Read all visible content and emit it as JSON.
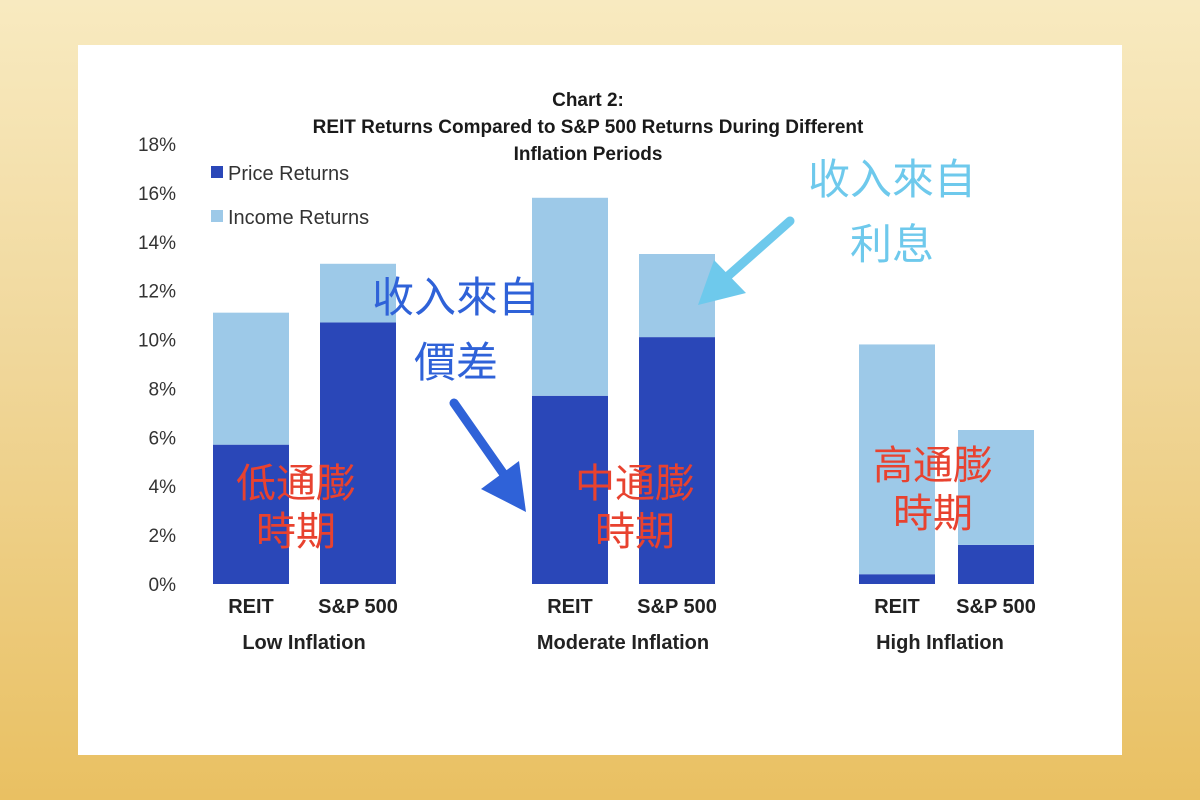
{
  "chart_data": {
    "type": "bar",
    "stacked": true,
    "title_lines": [
      "Chart 2:",
      "REIT Returns Compared to S&P 500 Returns During Different",
      "Inflation Periods"
    ],
    "ylim": [
      0,
      18
    ],
    "y_ticks": [
      "0%",
      "2%",
      "4%",
      "6%",
      "8%",
      "10%",
      "12%",
      "14%",
      "16%",
      "18%"
    ],
    "grid": false,
    "legend_position": "top-left",
    "groups": [
      {
        "name": "Low Inflation",
        "bars": [
          {
            "label": "REIT",
            "price": 5.7,
            "income": 5.4
          },
          {
            "label": "S&P 500",
            "price": 10.7,
            "income": 2.4
          }
        ]
      },
      {
        "name": "Moderate Inflation",
        "bars": [
          {
            "label": "REIT",
            "price": 7.7,
            "income": 8.1
          },
          {
            "label": "S&P 500",
            "price": 10.1,
            "income": 3.4
          }
        ]
      },
      {
        "name": "High Inflation",
        "bars": [
          {
            "label": "REIT",
            "price": 0.4,
            "income": 9.4
          },
          {
            "label": "S&P 500",
            "price": 1.6,
            "income": 4.7
          }
        ]
      }
    ],
    "series": [
      {
        "name": "Price Returns",
        "color": "#2a47b8"
      },
      {
        "name": "Income Returns",
        "color": "#9dc9e8"
      }
    ]
  },
  "annotations": {
    "low_period": [
      "低通膨",
      "時期"
    ],
    "moderate_period": [
      "中通膨",
      "時期"
    ],
    "high_period": [
      "高通膨",
      "時期"
    ],
    "price_diff": [
      "收入來自",
      "價差"
    ],
    "interest": [
      "收入來自",
      "利息"
    ]
  },
  "colors": {
    "annotation_red": "#e8422f",
    "annotation_blue": "#2f62d8",
    "annotation_cyan": "#6ec9ec"
  }
}
